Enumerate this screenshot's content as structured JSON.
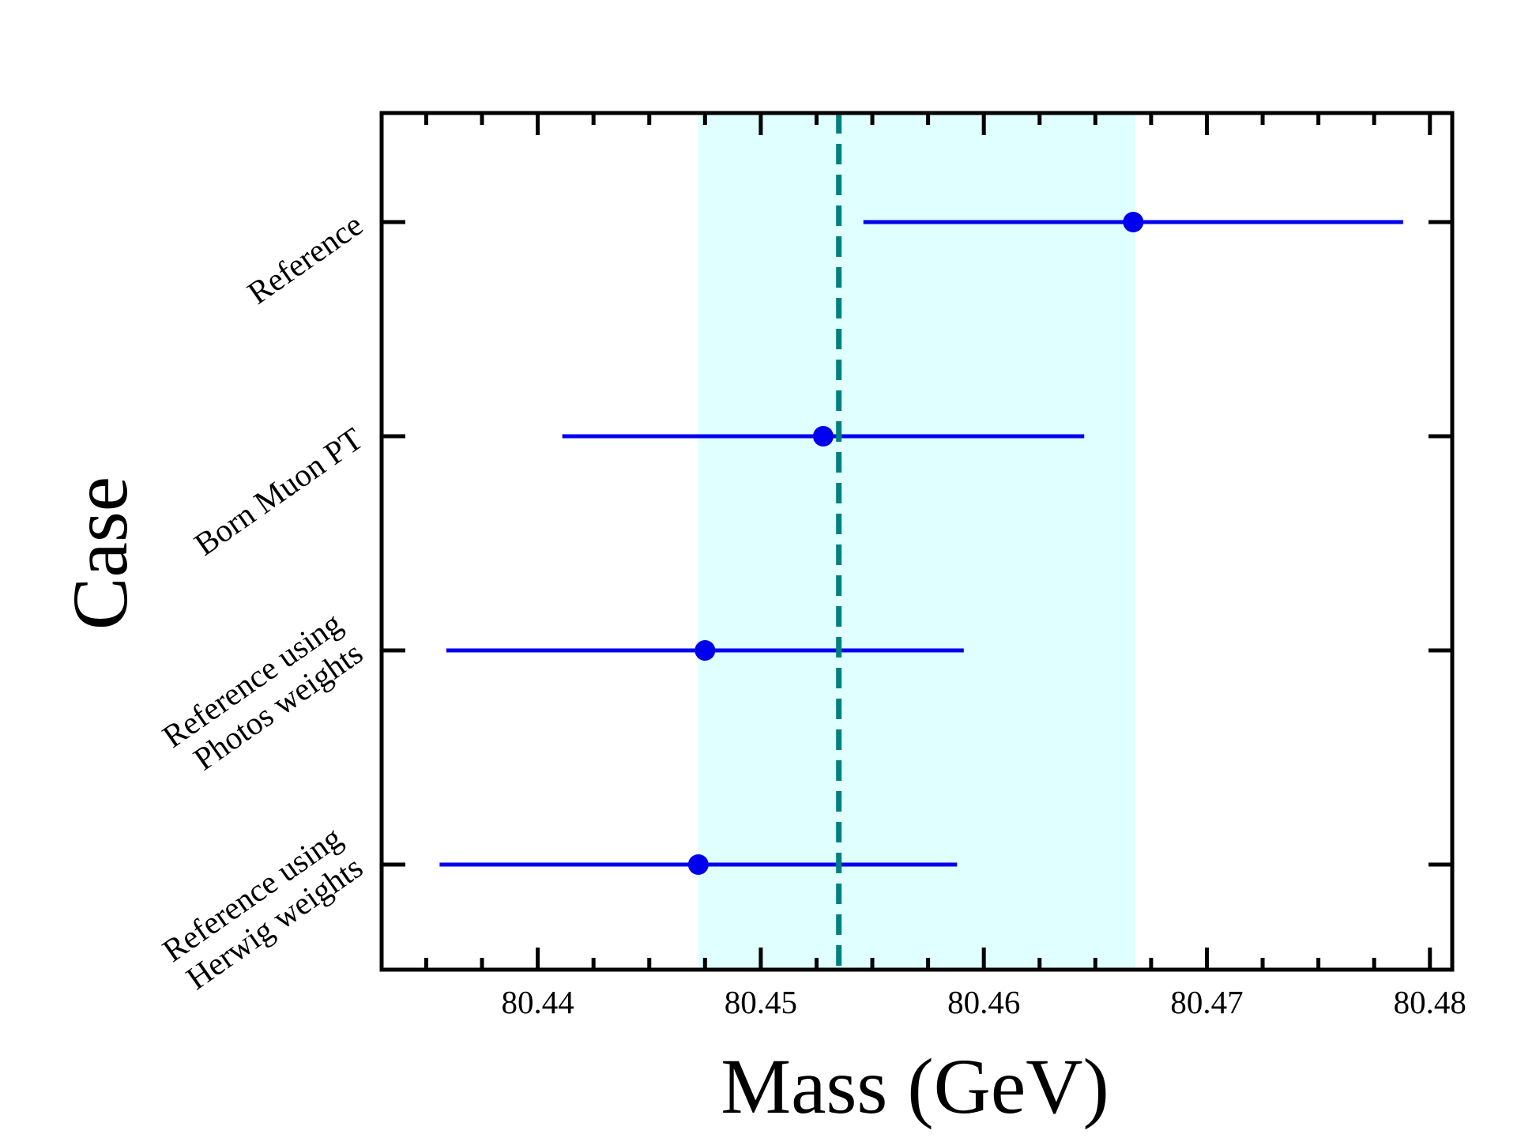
{
  "chart_data": {
    "type": "scatter",
    "title": "",
    "xlabel": "Mass (GeV)",
    "ylabel": "Case",
    "xlim": [
      80.433,
      80.481
    ],
    "x_ticks": [
      "80.44",
      "80.45",
      "80.46",
      "80.47",
      "80.48"
    ],
    "x_tick_values": [
      80.44,
      80.45,
      80.46,
      80.47,
      80.48
    ],
    "x_minor_step": 0.0025,
    "grid": false,
    "categories": [
      [
        "Reference"
      ],
      [
        "Born Muon PT"
      ],
      [
        "Reference using",
        "Photos weights"
      ],
      [
        "Reference using",
        "Herwig weights"
      ]
    ],
    "points": [
      {
        "value": 80.4667,
        "low": 80.4546,
        "high": 80.4788
      },
      {
        "value": 80.4528,
        "low": 80.4411,
        "high": 80.4645
      },
      {
        "value": 80.4475,
        "low": 80.4359,
        "high": 80.4591
      },
      {
        "value": 80.4472,
        "low": 80.4356,
        "high": 80.4588
      }
    ],
    "reference_line": {
      "value": 80.4535,
      "style": "dashed",
      "color": "#008080"
    },
    "band": {
      "low": 80.4472,
      "high": 80.4668,
      "color": "#e0ffff"
    },
    "marker_color": "#0000ee"
  }
}
